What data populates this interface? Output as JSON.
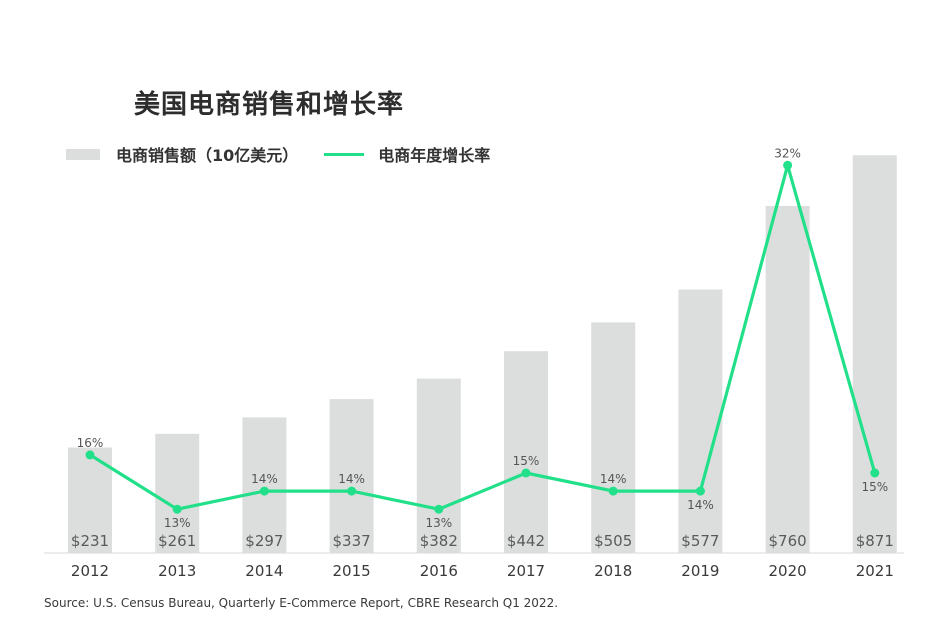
{
  "title": "美国电商销售和增长率",
  "legend": {
    "bars_label": "电商销售额（10亿美元）",
    "line_label": "电商年度增长率"
  },
  "source": "Source: U.S. Census Bureau, Quarterly E-Commerce Report, CBRE Research Q1 2022.",
  "colors": {
    "bar": "#dcdedd",
    "line": "#22e08a"
  },
  "chart_data": {
    "type": "bar",
    "categories": [
      "2012",
      "2013",
      "2014",
      "2015",
      "2016",
      "2017",
      "2018",
      "2019",
      "2020",
      "2021"
    ],
    "series": [
      {
        "name": "电商销售额（10亿美元）",
        "type": "bar",
        "values": [
          231,
          261,
          297,
          337,
          382,
          442,
          505,
          577,
          760,
          871
        ],
        "labels": [
          "$231",
          "$261",
          "$297",
          "$337",
          "$382",
          "$442",
          "$505",
          "$577",
          "$760",
          "$871"
        ]
      },
      {
        "name": "电商年度增长率",
        "type": "line",
        "values": [
          16,
          13,
          14,
          14,
          13,
          15,
          14,
          14,
          32,
          15
        ],
        "labels": [
          "16%",
          "13%",
          "14%",
          "14%",
          "13%",
          "15%",
          "14%",
          "14%",
          "32%",
          "15%"
        ]
      }
    ],
    "legend_position": "top-left",
    "grid": false
  }
}
